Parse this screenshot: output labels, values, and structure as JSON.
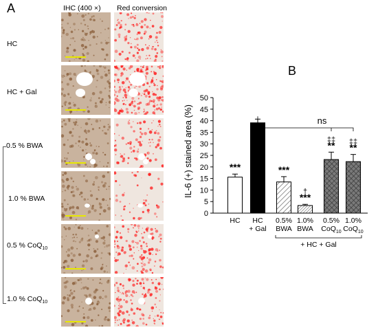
{
  "panel_a": {
    "letter": "A",
    "col_ihc": "IHC (400 ×)",
    "col_red": "Red conversion",
    "rows": [
      {
        "label": "HC",
        "sub": ""
      },
      {
        "label": "HC + Gal",
        "sub": ""
      },
      {
        "label": "0.5 % BWA",
        "sub": ""
      },
      {
        "label": "1.0 % BWA",
        "sub": ""
      },
      {
        "label": "0.5 % CoQ",
        "sub": "10"
      },
      {
        "label": "1.0 % CoQ",
        "sub": "10"
      }
    ],
    "colors": {
      "ihc_bg": "#c9b39e",
      "ihc_dark": "#8a5e3a",
      "red": "#ff1a1a",
      "vessel": "#ffffff",
      "scale": "#e8e800"
    }
  },
  "panel_b": {
    "letter": "B"
  },
  "chart_data": {
    "type": "bar",
    "ylabel": "IL-6 (+) stained area (%)",
    "ylim": [
      0,
      50
    ],
    "yticks": [
      0,
      5,
      10,
      15,
      20,
      25,
      30,
      35,
      40,
      45,
      50
    ],
    "categories": [
      {
        "line1": "HC",
        "line2": "",
        "sub": ""
      },
      {
        "line1": "HC",
        "line2": "+ Gal",
        "sub": ""
      },
      {
        "line1": "0.5%",
        "line2": "BWA",
        "sub": ""
      },
      {
        "line1": "1.0%",
        "line2": "BWA",
        "sub": ""
      },
      {
        "line1": "0.5%",
        "line2": "CoQ",
        "sub": "10"
      },
      {
        "line1": "1.0%",
        "line2": "CoQ",
        "sub": "10"
      }
    ],
    "values": [
      15.6,
      39.1,
      13.5,
      3.3,
      23.2,
      22.3
    ],
    "errors": [
      1.3,
      1.6,
      2.3,
      0.5,
      3.2,
      3.1
    ],
    "fills": [
      "white",
      "black",
      "diag",
      "diag-fine",
      "cross",
      "cross"
    ],
    "annotations": [
      [
        "***"
      ],
      [],
      [
        "***"
      ],
      [
        "***",
        "†"
      ],
      [
        "**",
        "‡‡"
      ],
      [
        "**",
        "‡‡"
      ]
    ],
    "ns_label": "ns",
    "group_label": "+ HC + Gal",
    "grid": false
  }
}
